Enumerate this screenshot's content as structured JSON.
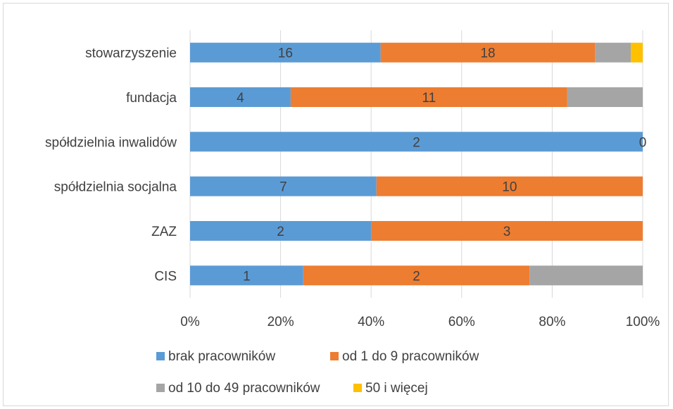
{
  "chart_data": {
    "type": "bar",
    "orientation": "horizontal",
    "stacked": "percent",
    "categories": [
      "stowarzyszenie",
      "fundacja",
      "spółdzielnia inwalidów",
      "spółdzielnia socjalna",
      "ZAZ",
      "CIS"
    ],
    "series": [
      {
        "name": "brak pracowników",
        "color": "#5b9bd5",
        "values": [
          16,
          4,
          2,
          7,
          2,
          1
        ],
        "labels": [
          "16",
          "4",
          "2",
          "7",
          "2",
          "1"
        ]
      },
      {
        "name": "od 1 do 9 pracowników",
        "color": "#ed7d31",
        "values": [
          18,
          11,
          0,
          10,
          3,
          2
        ],
        "labels": [
          "18",
          "11",
          "0",
          "10",
          "3",
          "2"
        ]
      },
      {
        "name": "od 10 do 49 pracowników",
        "color": "#a5a5a5",
        "values": [
          3,
          3,
          0,
          0,
          0,
          1
        ],
        "labels": [
          "",
          "",
          "",
          "",
          "",
          ""
        ]
      },
      {
        "name": "50 i więcej",
        "color": "#ffc000",
        "values": [
          1,
          0,
          0,
          0,
          0,
          0
        ],
        "labels": [
          "",
          "",
          "",
          "",
          "",
          ""
        ]
      }
    ],
    "x_ticks": [
      "0%",
      "20%",
      "40%",
      "60%",
      "80%",
      "100%"
    ],
    "xlim": [
      0,
      100
    ],
    "grid": "vertical",
    "legend_position": "bottom"
  }
}
